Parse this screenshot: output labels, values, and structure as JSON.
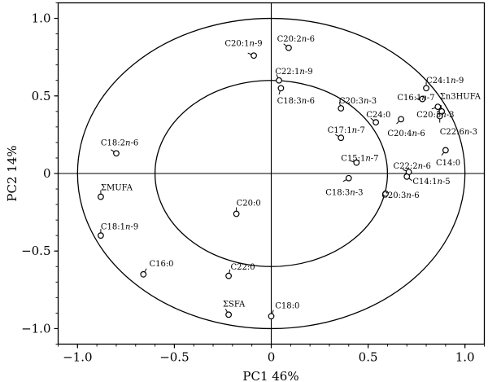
{
  "chart_data": {
    "type": "scatter",
    "xlabel": "PC1 46%",
    "ylabel": "PC2 14%",
    "xlim": [
      -1.1,
      1.1
    ],
    "ylim": [
      -1.1,
      1.1
    ],
    "xticks": [
      -1.0,
      -0.5,
      0,
      0.5,
      1.0
    ],
    "yticks": [
      -1.0,
      -0.5,
      0,
      0.5,
      1.0
    ],
    "xtick_labels": [
      "−1.0",
      "−0.5",
      "0",
      "0.5",
      "1.0"
    ],
    "ytick_labels": [
      "−1.0",
      "−0.5",
      "0",
      "0.5",
      "1.0"
    ],
    "circles": [
      {
        "cx": 0,
        "cy": 0,
        "r": 1.0
      },
      {
        "cx": 0,
        "cy": 0,
        "r": 0.6
      }
    ],
    "grid": false,
    "points": [
      {
        "x": -0.09,
        "y": 0.76,
        "label": "C20:1n-9",
        "pre": "C20:1",
        "it": "n",
        "post": "-9",
        "lx": -0.24,
        "ly": 0.84
      },
      {
        "x": 0.09,
        "y": 0.81,
        "label": "C20:2n-6",
        "pre": "C20:2",
        "it": "n",
        "post": "-6",
        "lx": 0.03,
        "ly": 0.87
      },
      {
        "x": 0.04,
        "y": 0.6,
        "label": "C22:1n-9",
        "pre": "C22:1",
        "it": "n",
        "post": "-9",
        "lx": 0.02,
        "ly": 0.66
      },
      {
        "x": 0.05,
        "y": 0.55,
        "label": "C18:3n-6",
        "pre": "C18:3",
        "it": "n",
        "post": "-6",
        "lx": 0.03,
        "ly": 0.47
      },
      {
        "x": 0.36,
        "y": 0.42,
        "label": "C20:3n-3",
        "pre": "C20:3",
        "it": "n",
        "post": "-3",
        "lx": 0.35,
        "ly": 0.47
      },
      {
        "x": 0.54,
        "y": 0.33,
        "label": "C24:0",
        "pre": "C24:0",
        "it": "",
        "post": "",
        "lx": 0.49,
        "ly": 0.38
      },
      {
        "x": 0.67,
        "y": 0.35,
        "label": "C20:4n-6",
        "pre": "C20:4",
        "it": "n",
        "post": "-6",
        "lx": 0.6,
        "ly": 0.26
      },
      {
        "x": 0.36,
        "y": 0.23,
        "label": "C17:1n-7",
        "pre": "C17:1",
        "it": "n",
        "post": "-7",
        "lx": 0.29,
        "ly": 0.28
      },
      {
        "x": 0.8,
        "y": 0.55,
        "label": "C24:1n-9",
        "pre": "C24:1",
        "it": "n",
        "post": "-9",
        "lx": 0.8,
        "ly": 0.6
      },
      {
        "x": 0.78,
        "y": 0.48,
        "label": "C16:1n-7",
        "pre": "C16:1",
        "it": "n",
        "post": "-7",
        "lx": 0.65,
        "ly": 0.49
      },
      {
        "x": 0.86,
        "y": 0.43,
        "label": "C20:5n-3",
        "pre": "C20:5",
        "it": "n",
        "post": "-3",
        "lx": 0.75,
        "ly": 0.38
      },
      {
        "x": 0.88,
        "y": 0.4,
        "label": "Σn3HUFA",
        "pre": "Σn3HUFA",
        "it": "",
        "post": "",
        "lx": 0.87,
        "ly": 0.5
      },
      {
        "x": 0.87,
        "y": 0.37,
        "label": "C22:6n-3",
        "pre": "C22:6",
        "it": "n",
        "post": "-3",
        "lx": 0.87,
        "ly": 0.27
      },
      {
        "x": 0.9,
        "y": 0.15,
        "label": "C14:0",
        "pre": "C14:0",
        "it": "",
        "post": "",
        "lx": 0.85,
        "ly": 0.07
      },
      {
        "x": 0.44,
        "y": 0.07,
        "label": "C15:1n-7",
        "pre": "C15:1",
        "it": "n",
        "post": "-7",
        "lx": 0.36,
        "ly": 0.1
      },
      {
        "x": 0.71,
        "y": 0.01,
        "label": "C22:2n-6",
        "pre": "C22:2",
        "it": "n",
        "post": "-6",
        "lx": 0.63,
        "ly": 0.05
      },
      {
        "x": 0.7,
        "y": -0.02,
        "label": "C14:1n-5",
        "pre": "C14:1",
        "it": "n",
        "post": "-5",
        "lx": 0.73,
        "ly": -0.05
      },
      {
        "x": 0.4,
        "y": -0.03,
        "label": "C18:3n-3",
        "pre": "C18:3",
        "it": "n",
        "post": "-3",
        "lx": 0.28,
        "ly": -0.12
      },
      {
        "x": 0.59,
        "y": -0.13,
        "label": "C20:3n-6",
        "pre": "C20:3",
        "it": "n",
        "post": "-6",
        "lx": 0.57,
        "ly": -0.14
      },
      {
        "x": -0.8,
        "y": 0.13,
        "label": "C18:2n-6",
        "pre": "C18:2",
        "it": "n",
        "post": "-6",
        "lx": -0.88,
        "ly": 0.2
      },
      {
        "x": -0.88,
        "y": -0.15,
        "label": "ΣMUFA",
        "pre": "ΣMUFA",
        "it": "",
        "post": "",
        "lx": -0.88,
        "ly": -0.09
      },
      {
        "x": -0.88,
        "y": -0.4,
        "label": "C18:1n-9",
        "pre": "C18:1",
        "it": "n",
        "post": "-9",
        "lx": -0.88,
        "ly": -0.34
      },
      {
        "x": -0.18,
        "y": -0.26,
        "label": "C20:0",
        "pre": "C20:0",
        "it": "",
        "post": "",
        "lx": -0.18,
        "ly": -0.19
      },
      {
        "x": -0.66,
        "y": -0.65,
        "label": "C16:0",
        "pre": "C16:0",
        "it": "",
        "post": "",
        "lx": -0.63,
        "ly": -0.58
      },
      {
        "x": -0.22,
        "y": -0.66,
        "label": "C22:0",
        "pre": "C22:0",
        "it": "",
        "post": "",
        "lx": -0.21,
        "ly": -0.6
      },
      {
        "x": -0.22,
        "y": -0.91,
        "label": "ΣSFA",
        "pre": "ΣSFA",
        "it": "",
        "post": "",
        "lx": -0.25,
        "ly": -0.84
      },
      {
        "x": 0.0,
        "y": -0.92,
        "label": "C18:0",
        "pre": "C18:0",
        "it": "",
        "post": "",
        "lx": 0.02,
        "ly": -0.85
      }
    ]
  }
}
